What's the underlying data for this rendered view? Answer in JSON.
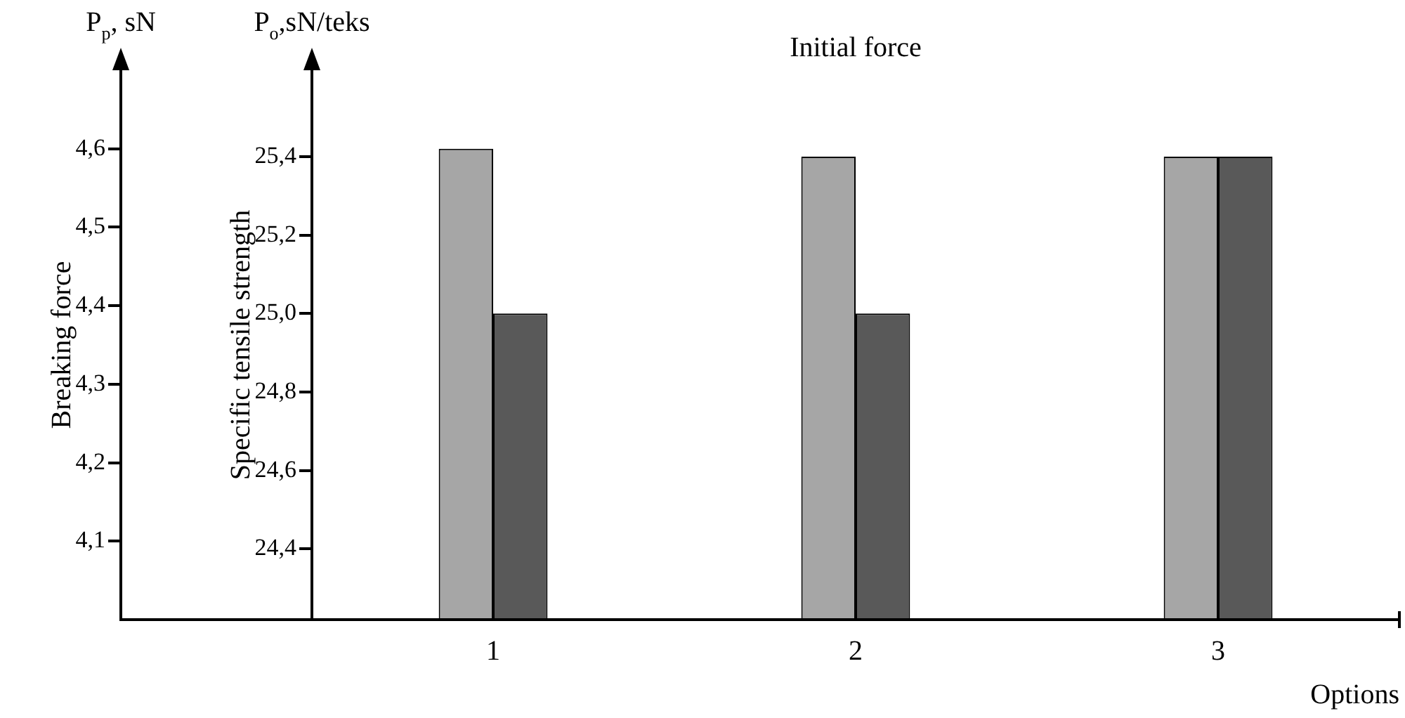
{
  "chart_data": {
    "type": "bar",
    "title": "Initial force",
    "xlabel": "Options",
    "ylabel": "Breaking force",
    "y2label": "Specific tensile strength",
    "categories": [
      "1",
      "2",
      "3"
    ],
    "series": [
      {
        "color": "#a6a6a6",
        "values": [
          4.6,
          4.59,
          4.59
        ]
      },
      {
        "color": "#595959",
        "values": [
          25.0,
          25.0,
          25.4
        ],
        "axis": "y2"
      }
    ],
    "ylim": [
      4.0,
      4.7
    ],
    "yticks": [
      {
        "value": 4.1,
        "label": "4,1"
      },
      {
        "value": 4.2,
        "label": "4,2"
      },
      {
        "value": 4.3,
        "label": "4,3"
      },
      {
        "value": 4.4,
        "label": "4,4"
      },
      {
        "value": 4.5,
        "label": "4,5"
      },
      {
        "value": 4.6,
        "label": "4,6"
      }
    ],
    "y2lim": [
      24.22,
      25.62
    ],
    "y2ticks": [
      {
        "value": 24.4,
        "label": "24,4"
      },
      {
        "value": 24.6,
        "label": "24,6"
      },
      {
        "value": 24.8,
        "label": "24,8"
      },
      {
        "value": 25.0,
        "label": "25,0"
      },
      {
        "value": 25.2,
        "label": "25,2"
      },
      {
        "value": 25.4,
        "label": "25,4"
      }
    ],
    "annotations": [
      "P$_{p}$, sN",
      "P$_{o}$,sN/teks"
    ]
  }
}
